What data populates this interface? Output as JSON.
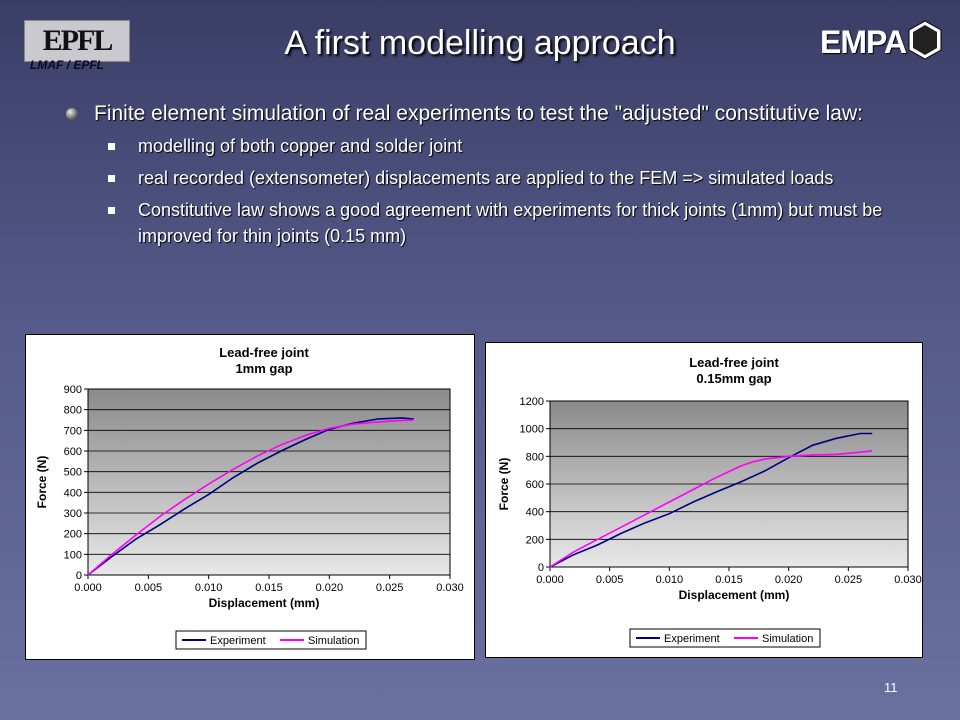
{
  "slide": {
    "title": "A first modelling approach",
    "logo_left_text": "EPFL",
    "logo_left_caption": "LMAF / EPFL",
    "logo_right_text": "EMPA",
    "page_number": "11"
  },
  "bullets": {
    "main": "Finite element simulation of real experiments to test the \"adjusted\" constitutive law:",
    "sub": [
      "modelling of both copper and solder joint",
      "real recorded (extensometer) displacements are applied to the FEM => simulated loads",
      "Constitutive law shows a good agreement with experiments for thick joints (1mm) but must be improved for thin joints (0.15 mm)"
    ]
  },
  "colors": {
    "experiment": "#00007f",
    "simulation": "#ff00ff",
    "plot_top": "#8a8a8a",
    "plot_bottom": "#e8e8e8"
  },
  "chart_data": [
    {
      "type": "line",
      "title": "Lead-free joint",
      "subtitle": "1mm gap",
      "xlabel": "Displacement (mm)",
      "ylabel": "Force (N)",
      "xlim": [
        0,
        0.03
      ],
      "ylim": [
        0,
        900
      ],
      "xticks": [
        "0.000",
        "0.005",
        "0.010",
        "0.015",
        "0.020",
        "0.025",
        "0.030"
      ],
      "yticks": [
        "0",
        "100",
        "200",
        "300",
        "400",
        "500",
        "600",
        "700",
        "800",
        "900"
      ],
      "legend": "bottom",
      "series": [
        {
          "name": "Experiment",
          "color": "#00007f",
          "x": [
            0,
            0.002,
            0.004,
            0.006,
            0.008,
            0.01,
            0.012,
            0.014,
            0.016,
            0.018,
            0.02,
            0.022,
            0.024,
            0.026,
            0.027
          ],
          "y": [
            0,
            90,
            175,
            245,
            320,
            390,
            470,
            540,
            600,
            655,
            705,
            735,
            755,
            760,
            755
          ]
        },
        {
          "name": "Simulation",
          "color": "#ff00ff",
          "x": [
            0,
            0.002,
            0.004,
            0.006,
            0.008,
            0.01,
            0.012,
            0.014,
            0.016,
            0.018,
            0.02,
            0.022,
            0.024,
            0.026,
            0.027
          ],
          "y": [
            0,
            100,
            195,
            285,
            365,
            440,
            510,
            575,
            630,
            675,
            710,
            730,
            740,
            748,
            750
          ]
        }
      ]
    },
    {
      "type": "line",
      "title": "Lead-free joint",
      "subtitle": "0.15mm gap",
      "xlabel": "Displacement (mm)",
      "ylabel": "Force (N)",
      "xlim": [
        0,
        0.03
      ],
      "ylim": [
        0,
        1200
      ],
      "xticks": [
        "0.000",
        "0.005",
        "0.010",
        "0.015",
        "0.020",
        "0.025",
        "0.030"
      ],
      "yticks": [
        "0",
        "200",
        "400",
        "600",
        "800",
        "1000",
        "1200"
      ],
      "legend": "bottom",
      "series": [
        {
          "name": "Experiment",
          "color": "#00007f",
          "x": [
            0,
            0.002,
            0.004,
            0.006,
            0.008,
            0.01,
            0.012,
            0.014,
            0.016,
            0.018,
            0.02,
            0.022,
            0.024,
            0.026,
            0.027
          ],
          "y": [
            0,
            90,
            160,
            245,
            320,
            385,
            470,
            545,
            615,
            695,
            790,
            880,
            930,
            965,
            965
          ]
        },
        {
          "name": "Simulation",
          "color": "#ff00ff",
          "x": [
            0,
            0.002,
            0.004,
            0.006,
            0.008,
            0.01,
            0.012,
            0.014,
            0.016,
            0.017,
            0.018,
            0.02,
            0.022,
            0.024,
            0.026,
            0.027
          ],
          "y": [
            0,
            110,
            200,
            290,
            380,
            470,
            560,
            650,
            730,
            760,
            780,
            800,
            810,
            815,
            830,
            840
          ]
        }
      ]
    }
  ]
}
